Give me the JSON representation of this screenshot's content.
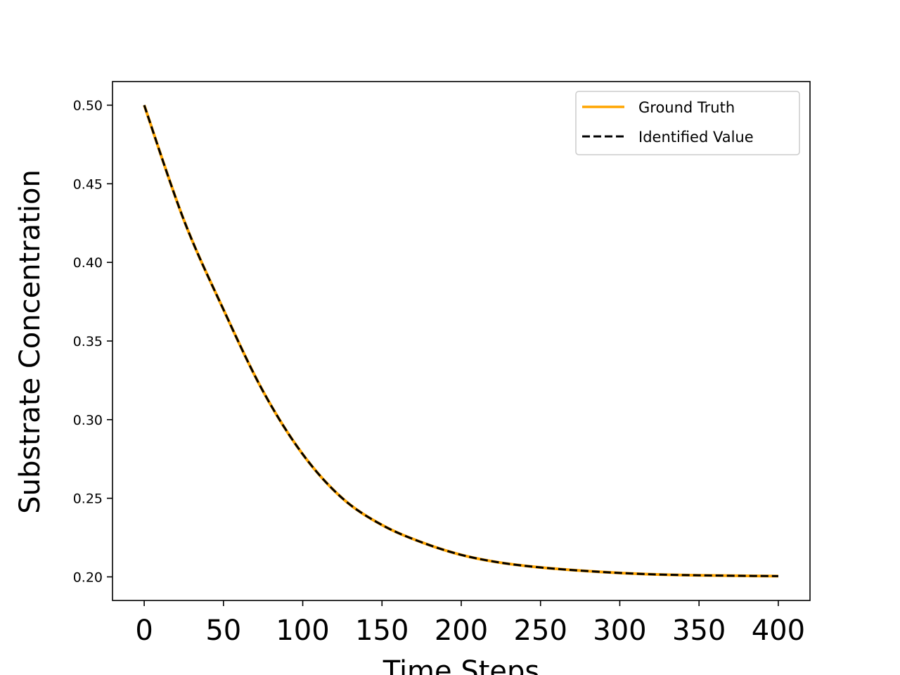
{
  "chart_data": {
    "type": "line",
    "title": "",
    "xlabel": "Time Steps",
    "ylabel": "Substrate Concentration",
    "xlim": [
      -20,
      420
    ],
    "ylim": [
      0.185,
      0.515
    ],
    "x_ticks": [
      0,
      50,
      100,
      150,
      200,
      250,
      300,
      350,
      400
    ],
    "x_tick_labels": [
      "0",
      "50",
      "100",
      "150",
      "200",
      "250",
      "300",
      "350",
      "400"
    ],
    "y_ticks": [
      0.2,
      0.25,
      0.3,
      0.35,
      0.4,
      0.45,
      0.5
    ],
    "y_tick_labels": [
      "0.20",
      "0.25",
      "0.30",
      "0.35",
      "0.40",
      "0.45",
      "0.50"
    ],
    "grid": false,
    "legend_position": "top-right",
    "x": [
      0,
      25,
      50,
      75,
      100,
      125,
      150,
      175,
      200,
      225,
      250,
      275,
      300,
      325,
      350,
      375,
      400
    ],
    "series": [
      {
        "name": "Ground Truth",
        "color": "#FFA500",
        "style": "solid",
        "values": [
          0.5,
          0.427,
          0.37,
          0.318,
          0.278,
          0.25,
          0.233,
          0.222,
          0.214,
          0.209,
          0.206,
          0.204,
          0.2025,
          0.2015,
          0.201,
          0.2007,
          0.2005
        ]
      },
      {
        "name": "Identified Value",
        "color": "#000000",
        "style": "dashed",
        "values": [
          0.5,
          0.427,
          0.37,
          0.318,
          0.278,
          0.25,
          0.233,
          0.222,
          0.214,
          0.209,
          0.206,
          0.204,
          0.2025,
          0.2015,
          0.201,
          0.2007,
          0.2005
        ]
      }
    ]
  }
}
